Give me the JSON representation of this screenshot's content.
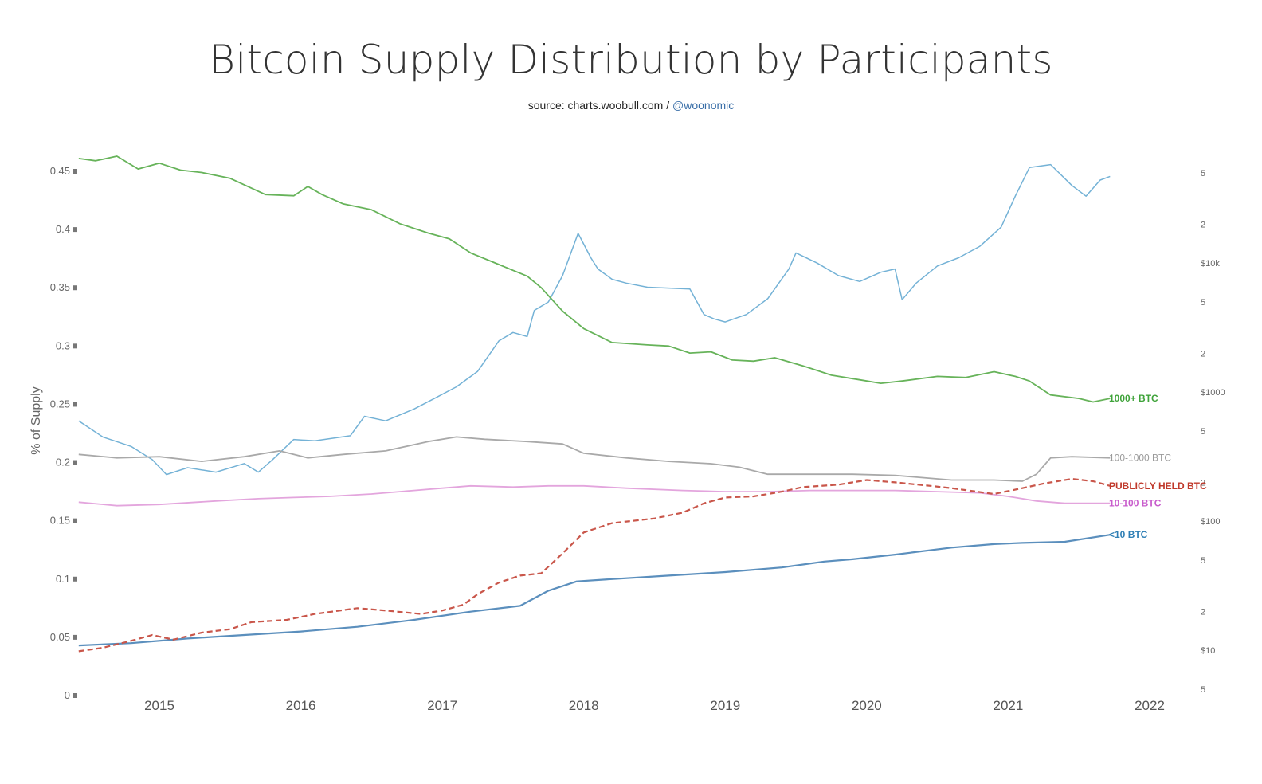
{
  "title": "Bitcoin Supply Distribution by Participants",
  "subtitle": {
    "source": "source: charts.woobull.com / ",
    "handle": "@woonomic"
  },
  "colors": {
    "btc_1000_plus": "#67b35a",
    "btc_100_1000": "#a9a9a9",
    "btc_10_100": "#e3a5dd",
    "btc_under_10": "#5b8fbd",
    "publicly_held": "#c9564a",
    "price": "#74b2d6"
  },
  "chart_data": {
    "type": "line",
    "title": "Bitcoin Supply Distribution by Participants",
    "ylabel": "% of Supply",
    "ylim": [
      0,
      0.45
    ],
    "yticks": [
      "0",
      "0.05",
      "0.1",
      "0.15",
      "0.2",
      "0.25",
      "0.3",
      "0.35",
      "0.4",
      "0.45"
    ],
    "xlim": [
      2014.43,
      2022.1
    ],
    "xticks": [
      "2015",
      "2016",
      "2017",
      "2018",
      "2019",
      "2020",
      "2021",
      "2022"
    ],
    "y2_scale": "log",
    "y2_ticks": [
      "5",
      "2",
      "$10k",
      "5",
      "2",
      "$1000",
      "5",
      "2",
      "$100",
      "5",
      "2",
      "$10",
      "5"
    ],
    "y2_tick_values": [
      50000,
      20000,
      10000,
      5000,
      2000,
      1000,
      500,
      200,
      100,
      50,
      20,
      10,
      5
    ],
    "grid": false,
    "legend": "inline labels at right end of each series",
    "series": [
      {
        "name": "1000+ BTC",
        "axis": "left",
        "x": [
          2014.43,
          2014.55,
          2014.7,
          2014.85,
          2015.0,
          2015.15,
          2015.3,
          2015.5,
          2015.75,
          2015.95,
          2016.05,
          2016.15,
          2016.3,
          2016.5,
          2016.7,
          2016.9,
          2017.05,
          2017.2,
          2017.4,
          2017.5,
          2017.6,
          2017.7,
          2017.85,
          2018.0,
          2018.2,
          2018.45,
          2018.6,
          2018.75,
          2018.9,
          2019.05,
          2019.2,
          2019.35,
          2019.55,
          2019.75,
          2019.95,
          2020.1,
          2020.25,
          2020.5,
          2020.7,
          2020.9,
          2021.05,
          2021.15,
          2021.3,
          2021.5,
          2021.6,
          2021.72
        ],
        "y": [
          0.461,
          0.459,
          0.463,
          0.452,
          0.457,
          0.451,
          0.449,
          0.444,
          0.43,
          0.429,
          0.437,
          0.43,
          0.422,
          0.417,
          0.405,
          0.397,
          0.392,
          0.38,
          0.37,
          0.365,
          0.36,
          0.35,
          0.33,
          0.315,
          0.303,
          0.301,
          0.3,
          0.294,
          0.295,
          0.288,
          0.287,
          0.29,
          0.283,
          0.275,
          0.271,
          0.268,
          0.27,
          0.274,
          0.273,
          0.278,
          0.274,
          0.27,
          0.258,
          0.255,
          0.252,
          0.255
        ]
      },
      {
        "name": "100-1000 BTC",
        "axis": "left",
        "x": [
          2014.43,
          2014.7,
          2015.0,
          2015.3,
          2015.6,
          2015.85,
          2016.05,
          2016.3,
          2016.6,
          2016.9,
          2017.1,
          2017.3,
          2017.6,
          2017.85,
          2018.0,
          2018.3,
          2018.6,
          2018.9,
          2019.1,
          2019.3,
          2019.6,
          2019.9,
          2020.2,
          2020.6,
          2020.9,
          2021.1,
          2021.2,
          2021.3,
          2021.45,
          2021.72
        ],
        "y": [
          0.207,
          0.204,
          0.205,
          0.201,
          0.205,
          0.21,
          0.204,
          0.207,
          0.21,
          0.218,
          0.222,
          0.22,
          0.218,
          0.216,
          0.208,
          0.204,
          0.201,
          0.199,
          0.196,
          0.19,
          0.19,
          0.19,
          0.189,
          0.185,
          0.185,
          0.184,
          0.19,
          0.204,
          0.205,
          0.204
        ]
      },
      {
        "name": "10-100 BTC",
        "axis": "left",
        "x": [
          2014.43,
          2014.7,
          2015.0,
          2015.4,
          2015.7,
          2015.95,
          2016.2,
          2016.5,
          2016.8,
          2017.0,
          2017.2,
          2017.5,
          2017.75,
          2018.0,
          2018.3,
          2018.7,
          2019.0,
          2019.3,
          2019.6,
          2019.9,
          2020.2,
          2020.5,
          2020.8,
          2021.0,
          2021.2,
          2021.4,
          2021.72
        ],
        "y": [
          0.166,
          0.163,
          0.164,
          0.167,
          0.169,
          0.17,
          0.171,
          0.173,
          0.176,
          0.178,
          0.18,
          0.179,
          0.18,
          0.18,
          0.178,
          0.176,
          0.175,
          0.175,
          0.176,
          0.176,
          0.176,
          0.175,
          0.174,
          0.171,
          0.167,
          0.165,
          0.165
        ]
      },
      {
        "name": "<10 BTC",
        "axis": "left",
        "x": [
          2014.43,
          2014.8,
          2015.2,
          2015.6,
          2016.0,
          2016.4,
          2016.8,
          2017.2,
          2017.55,
          2017.75,
          2017.95,
          2018.2,
          2018.6,
          2019.0,
          2019.4,
          2019.7,
          2019.9,
          2020.2,
          2020.6,
          2020.9,
          2021.1,
          2021.4,
          2021.72
        ],
        "y": [
          0.043,
          0.045,
          0.049,
          0.052,
          0.055,
          0.059,
          0.065,
          0.072,
          0.077,
          0.09,
          0.098,
          0.1,
          0.103,
          0.106,
          0.11,
          0.115,
          0.117,
          0.121,
          0.127,
          0.13,
          0.131,
          0.132,
          0.138
        ]
      },
      {
        "name": "PUBLICLY HELD BTC",
        "axis": "left",
        "style": "dashed",
        "x": [
          2014.43,
          2014.6,
          2014.8,
          2014.95,
          2015.1,
          2015.3,
          2015.5,
          2015.65,
          2015.9,
          2016.1,
          2016.4,
          2016.6,
          2016.85,
          2017.0,
          2017.15,
          2017.25,
          2017.4,
          2017.55,
          2017.7,
          2017.85,
          2018.0,
          2018.2,
          2018.5,
          2018.7,
          2018.85,
          2019.0,
          2019.2,
          2019.4,
          2019.55,
          2019.8,
          2020.0,
          2020.2,
          2020.45,
          2020.6,
          2020.9,
          2021.1,
          2021.25,
          2021.45,
          2021.6,
          2021.72
        ],
        "y": [
          0.038,
          0.041,
          0.047,
          0.052,
          0.048,
          0.054,
          0.057,
          0.063,
          0.065,
          0.07,
          0.075,
          0.073,
          0.07,
          0.073,
          0.078,
          0.087,
          0.097,
          0.103,
          0.105,
          0.122,
          0.14,
          0.148,
          0.152,
          0.157,
          0.165,
          0.17,
          0.171,
          0.175,
          0.179,
          0.181,
          0.185,
          0.183,
          0.18,
          0.178,
          0.173,
          0.178,
          0.182,
          0.186,
          0.184,
          0.18
        ]
      },
      {
        "name": "",
        "axis": "right",
        "x": [
          2014.43,
          2014.6,
          2014.8,
          2014.95,
          2015.05,
          2015.2,
          2015.4,
          2015.6,
          2015.7,
          2015.8,
          2015.95,
          2016.1,
          2016.35,
          2016.45,
          2016.6,
          2016.8,
          2016.95,
          2017.1,
          2017.25,
          2017.4,
          2017.5,
          2017.6,
          2017.65,
          2017.75,
          2017.85,
          2017.96,
          2018.05,
          2018.1,
          2018.2,
          2018.3,
          2018.45,
          2018.6,
          2018.75,
          2018.85,
          2018.92,
          2019.0,
          2019.15,
          2019.3,
          2019.45,
          2019.5,
          2019.65,
          2019.8,
          2019.95,
          2020.1,
          2020.2,
          2020.25,
          2020.35,
          2020.5,
          2020.65,
          2020.8,
          2020.95,
          2021.05,
          2021.15,
          2021.3,
          2021.45,
          2021.55,
          2021.65,
          2021.72
        ],
        "y": [
          600,
          450,
          380,
          300,
          230,
          260,
          240,
          280,
          240,
          300,
          430,
          420,
          460,
          650,
          600,
          740,
          900,
          1100,
          1450,
          2500,
          2900,
          2700,
          4300,
          5000,
          8000,
          17000,
          11000,
          9000,
          7500,
          7000,
          6500,
          6400,
          6300,
          4000,
          3700,
          3500,
          4000,
          5300,
          9000,
          12000,
          10000,
          8000,
          7200,
          8500,
          9000,
          5200,
          7000,
          9500,
          11000,
          13500,
          19000,
          33000,
          55000,
          58000,
          40000,
          33000,
          44000,
          47000
        ]
      }
    ]
  }
}
